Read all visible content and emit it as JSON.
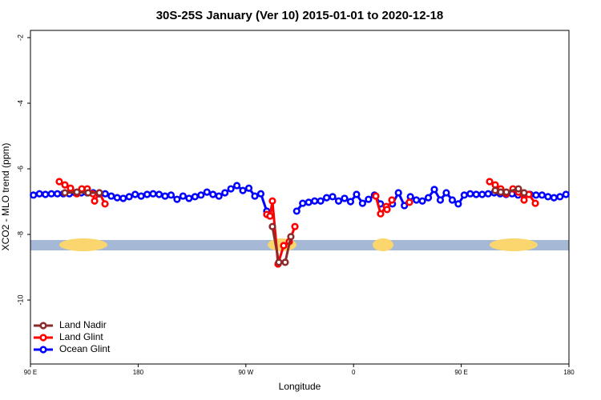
{
  "chart_data": {
    "type": "line",
    "title": "30S-25S January (Ver 10)   2015-01-01 to 2020-12-18",
    "xlabel": "Longitude",
    "ylabel": "XCO2 - MLO trend (ppm)",
    "xlim": [
      90,
      540
    ],
    "ylim": [
      -11.95,
      -1.78
    ],
    "xticks": [
      {
        "value": 90,
        "label": "90 E"
      },
      180,
      {
        "value": 270,
        "label": "90 W"
      },
      {
        "value": 360,
        "label": "0"
      },
      {
        "value": 450,
        "label": "90 E"
      },
      {
        "value": 540,
        "label": "180"
      }
    ],
    "yticks": [
      -2,
      -4,
      -6,
      -8,
      -10
    ],
    "legend": "lower left",
    "series": [
      {
        "name": "Land Nadir",
        "color": "#8b2b2b",
        "x": [
          118.8,
          128.8,
          138.2,
          147.6,
          200,
          292.2,
          297.6,
          302.9,
          307.6,
          400,
          478.4,
          483.0,
          487.7,
          497.8,
          502.5
        ],
        "values": [
          -6.73,
          -6.71,
          -6.73,
          -6.73,
          null,
          -7.76,
          -8.85,
          -8.85,
          -8.07,
          null,
          -6.66,
          -6.71,
          -6.71,
          -6.61,
          -6.73
        ]
      },
      {
        "name": "Land Glint",
        "color": "#ff0000",
        "x": [
          114.1,
          118.8,
          123.5,
          128.8,
          132.9,
          137.5,
          142.2,
          143.6,
          147.6,
          152.3,
          200,
          287.5,
          290.2,
          292.2,
          296.9,
          301.6,
          306.3,
          311.0,
          350,
          378.6,
          382.6,
          387.3,
          388.0,
          392.0,
          395,
          406.7,
          450,
          473.7,
          478.4,
          483.0,
          487.7,
          493.2,
          497.8,
          502.5,
          506.5,
          511.9
        ],
        "values": [
          -6.39,
          -6.49,
          -6.59,
          -6.76,
          -6.61,
          -6.61,
          -6.76,
          -6.98,
          -6.73,
          -7.07,
          null,
          -7.39,
          -7.44,
          -6.98,
          -8.9,
          -8.34,
          -8.22,
          -7.76,
          null,
          -6.83,
          -7.37,
          -7.15,
          -7.24,
          -6.95,
          null,
          -7.02,
          null,
          -6.39,
          -6.49,
          -6.61,
          -6.76,
          -6.61,
          -6.71,
          -6.95,
          -6.78,
          -7.05
        ]
      },
      {
        "name": "Ocean Glint",
        "color": "#0000ff",
        "x": [
          92.5,
          97.5,
          102.5,
          107.5,
          112.5,
          117.5,
          122.5,
          127.5,
          132.5,
          137.5,
          142.5,
          147.5,
          152.5,
          157.5,
          162.5,
          167.5,
          172.5,
          177.5,
          182.5,
          187.5,
          192.5,
          197.5,
          202.5,
          207.5,
          212.5,
          217.5,
          222.5,
          227.5,
          232.5,
          237.5,
          242.5,
          247.5,
          252.5,
          257.5,
          262.5,
          267.5,
          272.5,
          277.5,
          282.5,
          287.5,
          292.5,
          297.5,
          302.5,
          307.5,
          312.5,
          317.5,
          322.5,
          327.5,
          332.5,
          337.5,
          342.5,
          347.5,
          352.5,
          357.5,
          362.5,
          367.5,
          372.5,
          377.5,
          382.5,
          387.5,
          392.5,
          397.5,
          402.5,
          407.5,
          412.5,
          417.5,
          422.5,
          427.5,
          432.5,
          437.5,
          442.5,
          447.5,
          452.5,
          457.5,
          462.5,
          467.5,
          472.5,
          477.5,
          482.5,
          487.5,
          492.5,
          497.5,
          502.5,
          507.5,
          512.5,
          517.5,
          522.5,
          527.5,
          532.5,
          537.5
        ],
        "values": [
          -6.8,
          -6.76,
          -6.78,
          -6.76,
          -6.76,
          -6.76,
          -6.76,
          -6.73,
          -6.73,
          -6.73,
          -6.73,
          -6.76,
          -6.76,
          -6.83,
          -6.88,
          -6.9,
          -6.85,
          -6.78,
          -6.83,
          -6.78,
          -6.76,
          -6.78,
          -6.83,
          -6.8,
          -6.93,
          -6.83,
          -6.9,
          -6.85,
          -6.8,
          -6.71,
          -6.78,
          -6.83,
          -6.73,
          -6.61,
          -6.51,
          -6.66,
          -6.59,
          -6.83,
          -6.76,
          -7.29,
          null,
          null,
          null,
          null,
          -7.29,
          -7.05,
          -7.02,
          -6.98,
          -6.98,
          -6.88,
          -6.85,
          -6.98,
          -6.9,
          -7.0,
          -6.78,
          -7.05,
          -6.93,
          -6.8,
          -7.07,
          -7.15,
          -7.07,
          -6.73,
          -7.12,
          -6.85,
          -6.95,
          -6.98,
          -6.88,
          -6.63,
          -6.95,
          -6.73,
          -6.95,
          -7.07,
          -6.8,
          -6.76,
          -6.78,
          -6.78,
          -6.76,
          -6.73,
          -6.76,
          -6.78,
          -6.76,
          -6.8,
          -6.8,
          -6.78,
          -6.8,
          -6.8,
          -6.85,
          -6.88,
          -6.85,
          -6.78
        ]
      }
    ]
  }
}
